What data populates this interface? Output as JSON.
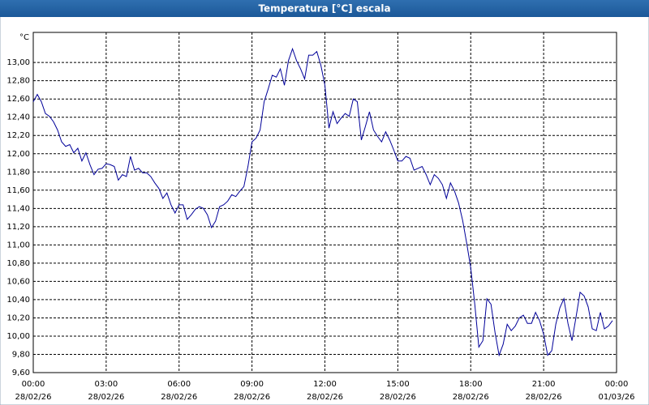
{
  "chart_data": {
    "type": "line",
    "title": "Temperatura [°C] escala",
    "y_unit": "°C",
    "x": [
      "00:00",
      "00:10",
      "00:20",
      "00:30",
      "00:40",
      "00:50",
      "01:00",
      "01:10",
      "01:20",
      "01:30",
      "01:40",
      "01:50",
      "02:00",
      "02:10",
      "02:20",
      "02:30",
      "02:40",
      "02:50",
      "03:00",
      "03:10",
      "03:20",
      "03:30",
      "03:40",
      "03:50",
      "04:00",
      "04:10",
      "04:20",
      "04:30",
      "04:40",
      "04:50",
      "05:00",
      "05:10",
      "05:20",
      "05:30",
      "05:40",
      "05:50",
      "06:00",
      "06:10",
      "06:20",
      "06:30",
      "06:40",
      "06:50",
      "07:00",
      "07:10",
      "07:20",
      "07:30",
      "07:40",
      "07:50",
      "08:00",
      "08:10",
      "08:20",
      "08:30",
      "08:40",
      "08:50",
      "09:00",
      "09:10",
      "09:20",
      "09:30",
      "09:40",
      "09:50",
      "10:00",
      "10:10",
      "10:20",
      "10:30",
      "10:40",
      "10:50",
      "11:00",
      "11:10",
      "11:20",
      "11:30",
      "11:40",
      "11:50",
      "12:00",
      "12:10",
      "12:20",
      "12:30",
      "12:40",
      "12:50",
      "13:00",
      "13:10",
      "13:20",
      "13:30",
      "13:40",
      "13:50",
      "14:00",
      "14:10",
      "14:20",
      "14:30",
      "14:40",
      "14:50",
      "15:00",
      "15:10",
      "15:20",
      "15:30",
      "15:40",
      "15:50",
      "16:00",
      "16:10",
      "16:20",
      "16:30",
      "16:40",
      "16:50",
      "17:00",
      "17:10",
      "17:20",
      "17:30",
      "17:40",
      "17:50",
      "18:00",
      "18:10",
      "18:20",
      "18:30",
      "18:40",
      "18:50",
      "19:00",
      "19:10",
      "19:20",
      "19:30",
      "19:40",
      "19:50",
      "20:00",
      "20:10",
      "20:20",
      "20:30",
      "20:40",
      "20:50",
      "21:00",
      "21:10",
      "21:20",
      "21:30",
      "21:40",
      "21:50",
      "22:00",
      "22:10",
      "22:20",
      "22:30",
      "22:40",
      "22:50",
      "23:00",
      "23:10",
      "23:20",
      "23:30",
      "23:40",
      "23:50"
    ],
    "series": [
      {
        "color": "#000099",
        "values": [
          12.57,
          12.65,
          12.57,
          12.44,
          12.41,
          12.35,
          12.26,
          12.13,
          12.08,
          12.1,
          12.01,
          12.06,
          11.92,
          12.01,
          11.88,
          11.77,
          11.83,
          11.84,
          11.89,
          11.88,
          11.86,
          11.71,
          11.77,
          11.75,
          11.97,
          11.82,
          11.84,
          11.79,
          11.79,
          11.75,
          11.68,
          11.62,
          11.51,
          11.57,
          11.44,
          11.35,
          11.44,
          11.44,
          11.28,
          11.33,
          11.39,
          11.42,
          11.4,
          11.33,
          11.19,
          11.26,
          11.42,
          11.44,
          11.48,
          11.55,
          11.53,
          11.59,
          11.64,
          11.86,
          12.13,
          12.17,
          12.26,
          12.57,
          12.71,
          12.86,
          12.84,
          12.93,
          12.75,
          13.02,
          13.15,
          13.02,
          12.93,
          12.82,
          13.08,
          13.08,
          13.12,
          12.97,
          12.75,
          12.28,
          12.46,
          12.33,
          12.39,
          12.44,
          12.41,
          12.6,
          12.57,
          12.15,
          12.3,
          12.46,
          12.26,
          12.19,
          12.13,
          12.24,
          12.15,
          12.04,
          11.92,
          11.92,
          11.97,
          11.95,
          11.82,
          11.84,
          11.86,
          11.77,
          11.66,
          11.77,
          11.73,
          11.66,
          11.51,
          11.68,
          11.59,
          11.46,
          11.27,
          11.02,
          10.75,
          10.35,
          9.88,
          9.95,
          10.41,
          10.35,
          10.04,
          9.79,
          9.91,
          10.13,
          10.06,
          10.11,
          10.2,
          10.23,
          10.14,
          10.14,
          10.26,
          10.17,
          10.02,
          9.79,
          9.84,
          10.13,
          10.31,
          10.41,
          10.14,
          9.95,
          10.21,
          10.48,
          10.44,
          10.32,
          10.08,
          10.06,
          10.26,
          10.08,
          10.11,
          10.17
        ]
      }
    ],
    "xlim": [
      0,
      1440
    ],
    "xticks": [
      {
        "value": 0,
        "label": "00:00"
      },
      {
        "value": 180,
        "label": "03:00"
      },
      {
        "value": 360,
        "label": "06:00"
      },
      {
        "value": 540,
        "label": "09:00"
      },
      {
        "value": 720,
        "label": "12:00"
      },
      {
        "value": 900,
        "label": "15:00"
      },
      {
        "value": 1080,
        "label": "18:00"
      },
      {
        "value": 1260,
        "label": "21:00"
      },
      {
        "value": 1440,
        "label": "00:00"
      }
    ],
    "xtick_dates": [
      "28/02/26",
      "28/02/26",
      "28/02/26",
      "28/02/26",
      "28/02/26",
      "28/02/26",
      "28/02/26",
      "28/02/26",
      "01/03/26"
    ],
    "ylim": [
      9.6,
      13.33
    ],
    "yticks": [
      {
        "value": 9.6,
        "label": "9,60"
      },
      {
        "value": 9.8,
        "label": "9,80"
      },
      {
        "value": 10.0,
        "label": "10,00"
      },
      {
        "value": 10.2,
        "label": "10,20"
      },
      {
        "value": 10.4,
        "label": "10,40"
      },
      {
        "value": 10.6,
        "label": "10,60"
      },
      {
        "value": 10.8,
        "label": "10,80"
      },
      {
        "value": 11.0,
        "label": "11,00"
      },
      {
        "value": 11.2,
        "label": "11,20"
      },
      {
        "value": 11.4,
        "label": "11,40"
      },
      {
        "value": 11.6,
        "label": "11,60"
      },
      {
        "value": 11.8,
        "label": "11,80"
      },
      {
        "value": 12.0,
        "label": "12,00"
      },
      {
        "value": 12.2,
        "label": "12,20"
      },
      {
        "value": 12.4,
        "label": "12,40"
      },
      {
        "value": 12.6,
        "label": "12,60"
      },
      {
        "value": 12.8,
        "label": "12,80"
      },
      {
        "value": 13.0,
        "label": "13,00"
      }
    ],
    "grid": true
  }
}
